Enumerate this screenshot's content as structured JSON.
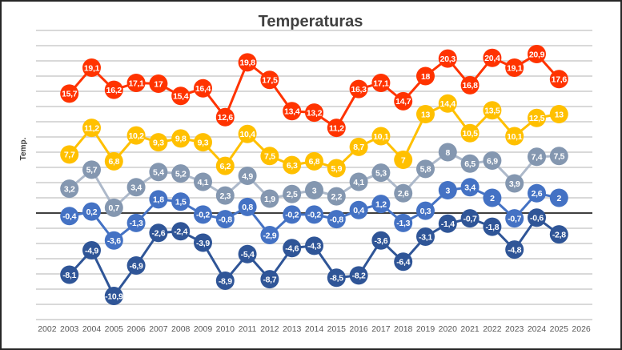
{
  "chart_data": {
    "type": "line",
    "title": "Temperaturas",
    "xlabel": "",
    "ylabel": "Temp.",
    "categories": [
      "2002",
      "2003",
      "2004",
      "2005",
      "2006",
      "2007",
      "2008",
      "2009",
      "2010",
      "2011",
      "2012",
      "2013",
      "2014",
      "2015",
      "2016",
      "2017",
      "2018",
      "2019",
      "2020",
      "2021",
      "2022",
      "2023",
      "2024",
      "2025",
      "2026"
    ],
    "ylim": [
      -14,
      24
    ],
    "ytick_step": 2,
    "y_tick_labels_shown": false,
    "grid": true,
    "legend": "none",
    "data_labels": true,
    "decimal_separator": ",",
    "series": [
      {
        "line_color": "#2F5597",
        "marker_color": "#2F5597",
        "values": [
          null,
          -8.1,
          -4.9,
          -10.9,
          -6.9,
          -2.6,
          -2.4,
          -3.9,
          -8.9,
          -5.4,
          -8.7,
          -4.6,
          -4.3,
          -8.5,
          -8.2,
          -3.6,
          -6.4,
          -3.1,
          -1.4,
          -0.7,
          -1.8,
          -4.8,
          -0.6,
          -2.8,
          null
        ]
      },
      {
        "line_color": "#4472C4",
        "marker_color": "#4472C4",
        "values": [
          null,
          -0.4,
          0.2,
          -3.6,
          -1.3,
          1.8,
          1.5,
          -0.2,
          -0.8,
          0.8,
          -2.9,
          -0.2,
          -0.2,
          -0.8,
          0.4,
          1.2,
          -1.3,
          0.3,
          3,
          3.4,
          2,
          -0.7,
          2.6,
          2,
          null
        ]
      },
      {
        "line_color": "#ADB9CA",
        "marker_color": "#8497B0",
        "values": [
          null,
          3.2,
          5.7,
          0.7,
          3.4,
          5.4,
          5.2,
          4.1,
          2.3,
          4.9,
          1.9,
          2.5,
          3,
          2.2,
          4.1,
          5.3,
          2.6,
          5.8,
          8,
          6.5,
          6.9,
          3.9,
          7.4,
          7.5,
          null
        ]
      },
      {
        "line_color": "#FFC000",
        "marker_color": "#FFC000",
        "values": [
          null,
          7.7,
          11.2,
          6.8,
          10.2,
          9.3,
          9.8,
          9.3,
          6.2,
          10.4,
          7.5,
          6.3,
          6.8,
          5.9,
          8.7,
          10.1,
          7,
          13,
          14.4,
          10.5,
          13.5,
          10.1,
          12.5,
          13,
          null
        ]
      },
      {
        "line_color": "#FF3300",
        "marker_color": "#FF3300",
        "values": [
          null,
          15.7,
          19.1,
          16.2,
          17.1,
          17,
          15.4,
          16.4,
          12.6,
          19.8,
          17.5,
          13.4,
          13.2,
          11.2,
          16.3,
          17.1,
          14.7,
          18,
          20.3,
          16.8,
          20.4,
          19.1,
          20.9,
          17.6,
          null
        ]
      }
    ]
  }
}
